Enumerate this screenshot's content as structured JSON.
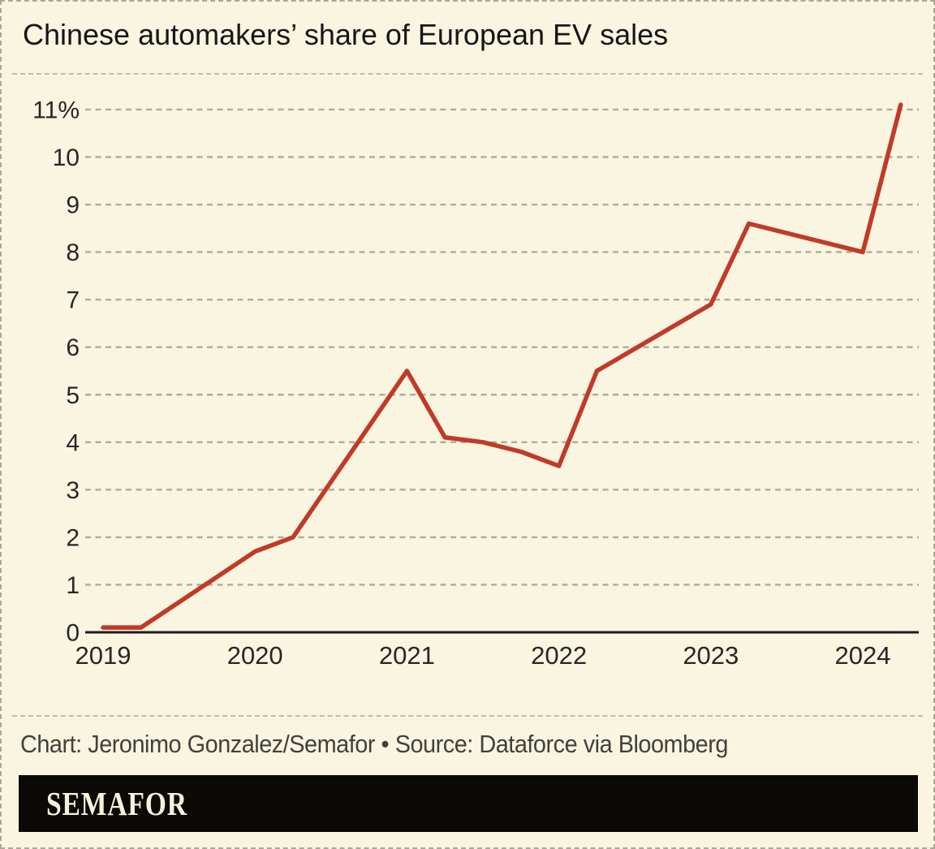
{
  "title": "Chinese automakers’ share of European EV sales",
  "footer": {
    "credit": "Chart: Jeronimo Gonzalez/Semafor • Source: Dataforce via Bloomberg"
  },
  "logo": {
    "text": "SEMAFOR"
  },
  "colors": {
    "background": "#faf5e1",
    "line": "#c13a28",
    "grid": "#aeab9d",
    "axis": "#1c1c1c",
    "tick_label": "#262626",
    "credit_text": "#41413b",
    "logo_bar": "#0b0a07",
    "logo_text": "#f6f1da",
    "border": "#aaa89b"
  },
  "chart_data": {
    "type": "line",
    "title": "Chinese automakers’ share of European EV sales",
    "xlabel": "",
    "ylabel": "",
    "unit": "%",
    "grid": "horizontal-dashed",
    "legend": "none",
    "xlim": [
      2018.9,
      2024.45
    ],
    "ylim": [
      0,
      11.55
    ],
    "x_ticks": [
      {
        "v": 2019,
        "label": "2019"
      },
      {
        "v": 2020,
        "label": "2020"
      },
      {
        "v": 2021,
        "label": "2021"
      },
      {
        "v": 2022,
        "label": "2022"
      },
      {
        "v": 2023,
        "label": "2023"
      },
      {
        "v": 2024,
        "label": "2024"
      }
    ],
    "y_ticks": [
      {
        "v": 0,
        "label": "0"
      },
      {
        "v": 1,
        "label": "1"
      },
      {
        "v": 2,
        "label": "2"
      },
      {
        "v": 3,
        "label": "3"
      },
      {
        "v": 4,
        "label": "4"
      },
      {
        "v": 5,
        "label": "5"
      },
      {
        "v": 6,
        "label": "6"
      },
      {
        "v": 7,
        "label": "7"
      },
      {
        "v": 8,
        "label": "8"
      },
      {
        "v": 9,
        "label": "9"
      },
      {
        "v": 10,
        "label": "10"
      },
      {
        "v": 11,
        "label": "11%"
      }
    ],
    "series": [
      {
        "name": "Chinese automakers’ share of European EV sales",
        "points": [
          [
            2019.0,
            0.1
          ],
          [
            2019.25,
            0.1
          ],
          [
            2020.0,
            1.7
          ],
          [
            2020.25,
            2.0
          ],
          [
            2021.0,
            5.5
          ],
          [
            2021.25,
            4.1
          ],
          [
            2021.5,
            4.0
          ],
          [
            2021.75,
            3.8
          ],
          [
            2022.0,
            3.5
          ],
          [
            2022.25,
            5.5
          ],
          [
            2023.0,
            6.9
          ],
          [
            2023.25,
            8.6
          ],
          [
            2024.0,
            8.0
          ],
          [
            2024.25,
            11.1
          ]
        ]
      }
    ]
  }
}
